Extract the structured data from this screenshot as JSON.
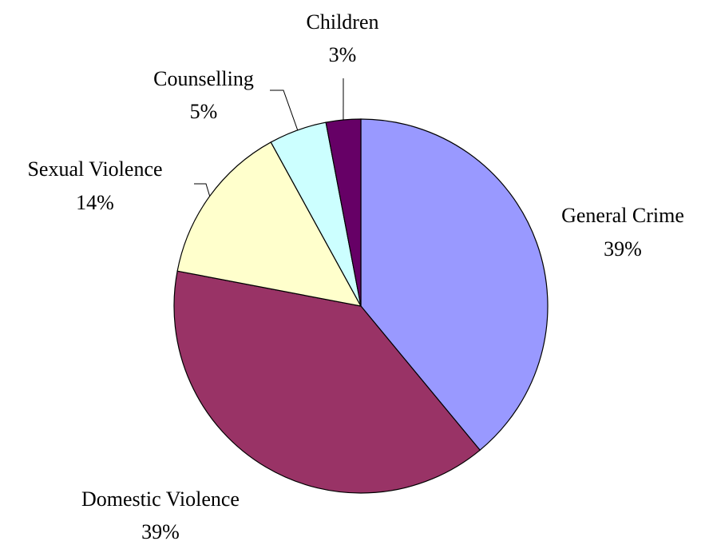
{
  "chart_data": {
    "type": "pie",
    "title": "",
    "labels": [
      {
        "name": "General Crime",
        "pct_label": "39%"
      },
      {
        "name": "Domestic Violence",
        "pct_label": "39%"
      },
      {
        "name": "Sexual Violence",
        "pct_label": "14%"
      },
      {
        "name": "Counselling",
        "pct_label": "5%"
      },
      {
        "name": "Children",
        "pct_label": "3%"
      }
    ],
    "values": [
      39,
      39,
      14,
      5,
      3
    ],
    "colors": [
      "#9999FF",
      "#993366",
      "#FFFFCC",
      "#CCFFFF",
      "#660066"
    ],
    "start": "12 o'clock",
    "direction": "clockwise"
  }
}
